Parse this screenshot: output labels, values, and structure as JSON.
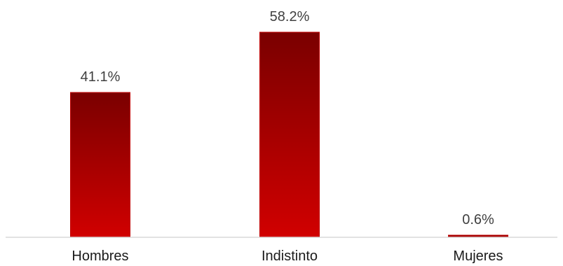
{
  "chart_data": {
    "type": "bar",
    "title": "",
    "xlabel": "",
    "ylabel": "",
    "categories": [
      "Hombres",
      "Indistinto",
      "Mujeres"
    ],
    "values": [
      41.1,
      58.2,
      0.6
    ],
    "value_labels": [
      "41.1%",
      "58.2%",
      "0.6%"
    ],
    "unit": "%",
    "ylim": [
      0,
      58.2
    ],
    "grid": false,
    "legend": "none",
    "colors": {
      "bar_top": "#7a0000",
      "bar_bottom": "#d10000",
      "bar_border": "#c00000",
      "axis_line": "#d9d9d9",
      "value_text": "#404040",
      "category_text": "#1a1a1a"
    }
  }
}
